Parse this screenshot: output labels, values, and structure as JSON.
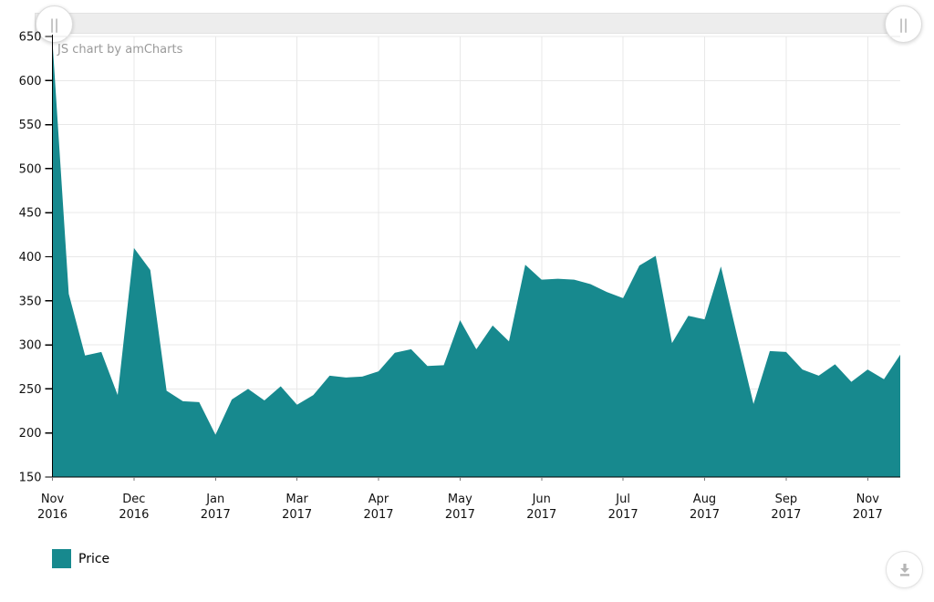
{
  "watermark": "JS chart by amCharts",
  "colors": {
    "series_teal": "#17898e",
    "grid": "#e8e8e8",
    "axis": "#000000",
    "axis_text": "#111111",
    "watermark_gray": "#9a9a9a",
    "scrollbar_bg": "#ededed",
    "icon_gray": "#b5b5b5"
  },
  "icons": {
    "scrollbar_grip_glyph": "||",
    "scrollbar_grip_name": "drag-grip-icon",
    "export_name": "download-icon"
  },
  "legend": {
    "items": [
      {
        "label": "Price",
        "color": "#17898e"
      }
    ]
  },
  "chart_data": {
    "type": "area",
    "title": "",
    "xlabel": "",
    "ylabel": "",
    "ylim": [
      150,
      650
    ],
    "y_ticks": [
      650,
      600,
      550,
      500,
      450,
      400,
      350,
      300,
      250,
      200,
      150
    ],
    "x_ticks": [
      {
        "pos": 0,
        "month": "Nov",
        "year": "2016"
      },
      {
        "pos": 5,
        "month": "Dec",
        "year": "2016"
      },
      {
        "pos": 10,
        "month": "Jan",
        "year": "2017"
      },
      {
        "pos": 15,
        "month": "Mar",
        "year": "2017"
      },
      {
        "pos": 20,
        "month": "Apr",
        "year": "2017"
      },
      {
        "pos": 25,
        "month": "May",
        "year": "2017"
      },
      {
        "pos": 30,
        "month": "Jun",
        "year": "2017"
      },
      {
        "pos": 35,
        "month": "Jul",
        "year": "2017"
      },
      {
        "pos": 40,
        "month": "Aug",
        "year": "2017"
      },
      {
        "pos": 45,
        "month": "Sep",
        "year": "2017"
      },
      {
        "pos": 50,
        "month": "Nov",
        "year": "2017"
      }
    ],
    "grid": true,
    "legend_position": "bottom-left",
    "series": [
      {
        "name": "Price",
        "color": "#17898e",
        "values": [
          645,
          358,
          288,
          292,
          243,
          410,
          385,
          248,
          236,
          235,
          198,
          238,
          250,
          237,
          253,
          232,
          243,
          265,
          263,
          264,
          270,
          291,
          295,
          276,
          277,
          328,
          295,
          322,
          304,
          391,
          374,
          375,
          374,
          369,
          360,
          353,
          390,
          401,
          302,
          333,
          329,
          389,
          310,
          233,
          293,
          292,
          272,
          265,
          278,
          258,
          272,
          261,
          289
        ]
      }
    ]
  }
}
